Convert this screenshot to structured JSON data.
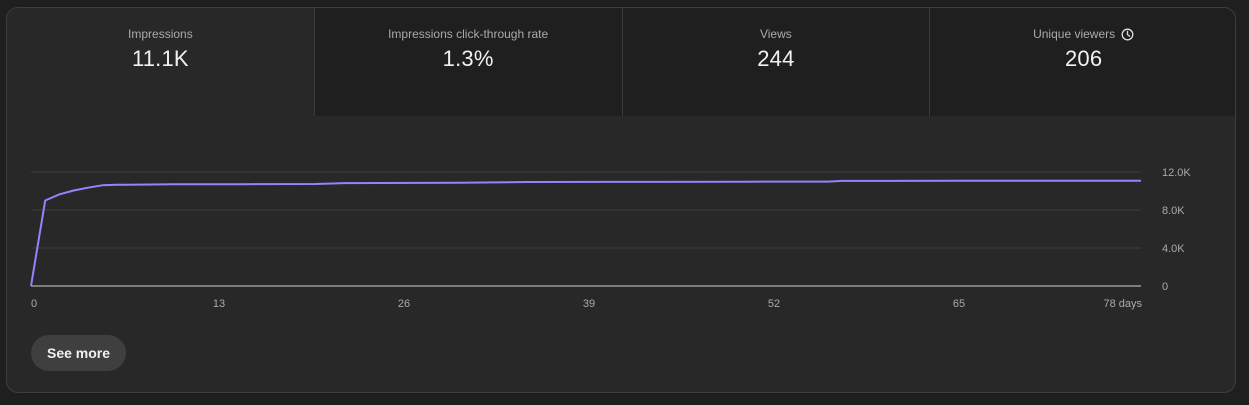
{
  "tabs": [
    {
      "label": "Impressions",
      "value": "11.1K",
      "selected": true
    },
    {
      "label": "Impressions click-through rate",
      "value": "1.3%",
      "selected": false
    },
    {
      "label": "Views",
      "value": "244",
      "selected": false
    },
    {
      "label": "Unique viewers",
      "value": "206",
      "selected": false,
      "icon": "clock-icon"
    }
  ],
  "chart_data": {
    "type": "line",
    "x_unit_label": "days",
    "x_ticks": [
      0,
      13,
      26,
      39,
      52,
      65,
      78
    ],
    "x_tick_labels": [
      "0",
      "13",
      "26",
      "39",
      "52",
      "65",
      "78 days"
    ],
    "y_ticks": [
      0,
      4000,
      8000,
      12000
    ],
    "y_tick_labels": [
      "0",
      "4.0K",
      "8.0K",
      "12.0K"
    ],
    "xlim": [
      0,
      78
    ],
    "ylim": [
      0,
      12000
    ],
    "grid": true,
    "line_color": "#8f86ff",
    "series": [
      {
        "x": [
          0,
          1,
          2,
          3,
          4,
          5,
          6,
          10,
          15,
          20,
          22,
          30,
          35,
          40,
          50,
          56,
          57,
          65,
          70,
          78
        ],
        "values": [
          0,
          9000,
          9650,
          10050,
          10350,
          10600,
          10650,
          10700,
          10720,
          10740,
          10830,
          10860,
          10950,
          10960,
          10980,
          10990,
          11060,
          11070,
          11070,
          11080
        ]
      }
    ]
  },
  "see_more": {
    "label": "See more"
  }
}
